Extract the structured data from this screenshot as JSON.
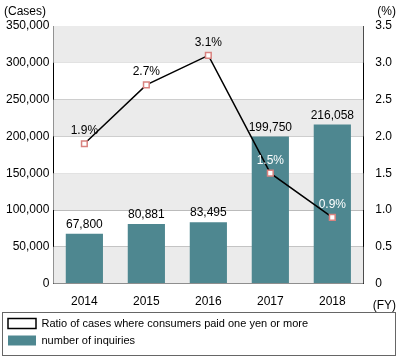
{
  "chart_data": {
    "type": "bar",
    "categories": [
      "2014",
      "2015",
      "2016",
      "2017",
      "2018"
    ],
    "y_label": "(Cases)",
    "y2_label": "(%)",
    "x_label": "(FY)",
    "ylim": [
      0,
      350000
    ],
    "yticks": [
      0,
      {
        "value": 50000,
        "label": "50,000"
      },
      {
        "value": 100000,
        "label": "100,000"
      },
      {
        "value": 150000,
        "label": "150,000"
      },
      {
        "value": 200000,
        "label": "200,000"
      },
      {
        "value": 250000,
        "label": "250,000"
      },
      {
        "value": 300000,
        "label": "300,000"
      },
      {
        "value": 350000,
        "label": "350,000"
      }
    ],
    "y2lim": [
      0,
      3.5
    ],
    "y2ticks": [
      0,
      0.5,
      {
        "value": 1,
        "label": "1.0"
      },
      1.5,
      {
        "value": 2,
        "label": "2.0"
      },
      2.5,
      {
        "value": 3,
        "label": "3.0"
      },
      3.5
    ],
    "grid": true,
    "legend": "bottom",
    "data_labels": true,
    "series": [
      {
        "name": "number of inquiries",
        "type": "bar",
        "color": "#4e8790",
        "values": [
          67800,
          80881,
          83495,
          199750,
          216058
        ],
        "value_labels": [
          "67,800",
          "80,881",
          "83,495",
          "199,750",
          "216,058"
        ]
      },
      {
        "name": "Ratio of cases where consumers paid one yen or more",
        "type": "line",
        "axis": "y2",
        "color": "#000000",
        "marker": "square",
        "values": [
          1.9,
          2.7,
          3.1,
          1.5,
          0.9
        ],
        "value_labels": [
          "1.9%",
          "2.7%",
          "3.1%",
          "1.5%",
          "0.9%"
        ]
      }
    ]
  }
}
